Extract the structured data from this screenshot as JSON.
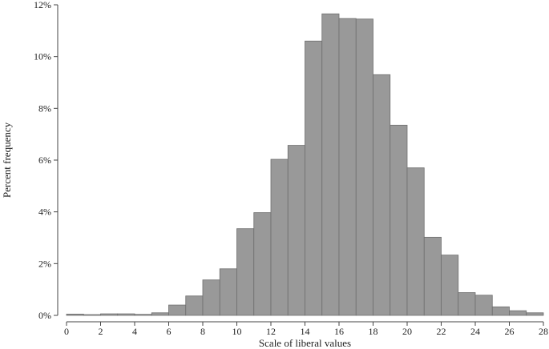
{
  "chart_data": {
    "type": "bar",
    "title": "",
    "xlabel": "Scale of liberal values",
    "ylabel": "Percent frequency",
    "bin_edges": [
      0,
      1,
      2,
      3,
      4,
      5,
      6,
      7,
      8,
      9,
      10,
      11,
      12,
      13,
      14,
      15,
      16,
      17,
      18,
      19,
      20,
      21,
      22,
      23,
      24,
      25,
      26,
      27,
      28
    ],
    "values": [
      0.05,
      0.03,
      0.06,
      0.06,
      0.04,
      0.1,
      0.4,
      0.75,
      1.37,
      1.8,
      3.35,
      3.97,
      6.03,
      6.57,
      10.6,
      11.65,
      11.47,
      11.45,
      9.3,
      7.35,
      5.7,
      3.02,
      2.33,
      0.88,
      0.78,
      0.33,
      0.18,
      0.1
    ],
    "xlim": [
      0,
      28
    ],
    "ylim": [
      0,
      12
    ],
    "x_ticks": [
      0,
      2,
      4,
      6,
      8,
      10,
      12,
      14,
      16,
      18,
      20,
      22,
      24,
      26,
      28
    ],
    "y_ticks": [
      0,
      2,
      4,
      6,
      8,
      10,
      12
    ],
    "y_tick_labels": [
      "0%",
      "2%",
      "4%",
      "6%",
      "8%",
      "10%",
      "12%"
    ],
    "bar_color": "#999999",
    "grid": false,
    "legend": "none"
  }
}
